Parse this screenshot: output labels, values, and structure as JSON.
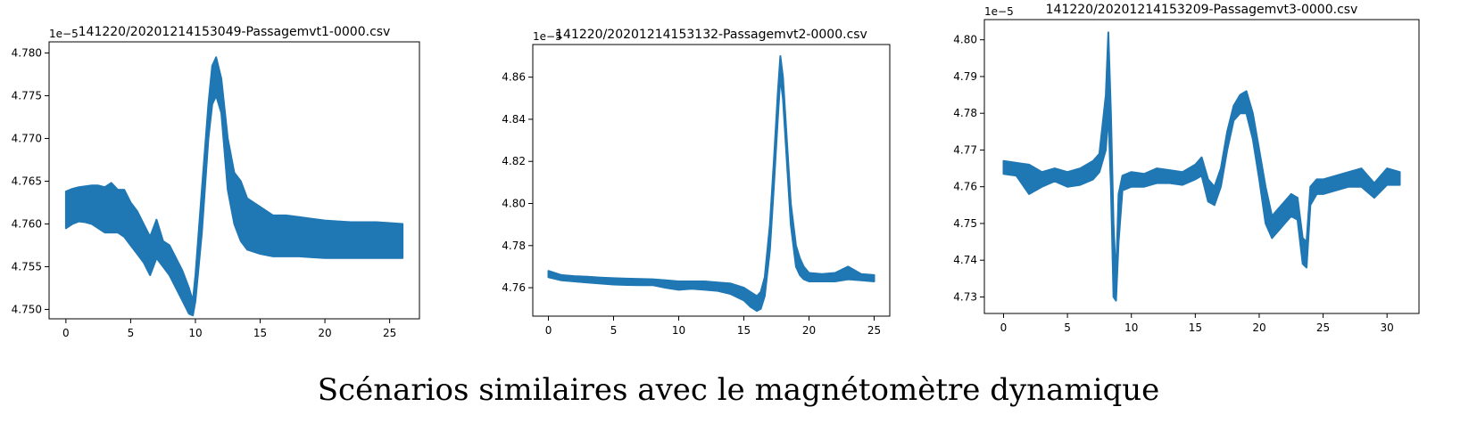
{
  "caption": "Scénarios similaires avec le magnétomètre dynamique",
  "chart_data": [
    {
      "type": "line",
      "title": "141220/20201214153049-Passagemvt1-0000.csv",
      "offset_text": "1e−5",
      "xlabel": "",
      "ylabel": "",
      "xlim": [
        -1.3,
        27.3
      ],
      "ylim": [
        4.7489,
        4.7813
      ],
      "xticks": [
        0,
        5,
        10,
        15,
        20,
        25
      ],
      "yticks": [
        4.75,
        4.755,
        4.76,
        4.765,
        4.77,
        4.775,
        4.78
      ],
      "ytick_decimals": 3,
      "grid": false,
      "color": "#1f77b4",
      "series": [
        {
          "x": [
            0,
            0.5,
            1,
            1.5,
            2,
            2.5,
            3,
            3.5,
            4,
            4.5,
            5,
            5.5,
            6,
            6.5,
            7,
            7.5,
            8,
            8.5,
            9,
            9.5,
            9.8,
            10,
            10.5,
            11,
            11.3,
            11.6,
            12,
            12.5,
            13,
            13.5,
            14,
            15,
            16,
            17,
            18,
            19,
            20,
            21,
            22,
            23,
            24,
            25,
            26
          ],
          "upper": [
            4.7638,
            4.7641,
            4.7643,
            4.7644,
            4.7645,
            4.7645,
            4.7643,
            4.7648,
            4.764,
            4.764,
            4.7625,
            4.7615,
            4.76,
            4.7585,
            4.7605,
            4.758,
            4.7575,
            4.756,
            4.7545,
            4.7525,
            4.751,
            4.754,
            4.764,
            4.774,
            4.7785,
            4.7795,
            4.777,
            4.77,
            4.766,
            4.765,
            4.763,
            4.762,
            4.761,
            4.761,
            4.7608,
            4.7606,
            4.7604,
            4.7603,
            4.7602,
            4.7602,
            4.7602,
            4.7601,
            4.76
          ],
          "lower": [
            4.7595,
            4.76,
            4.7603,
            4.7602,
            4.76,
            4.7595,
            4.759,
            4.759,
            4.759,
            4.7585,
            4.7575,
            4.7565,
            4.7555,
            4.754,
            4.756,
            4.755,
            4.754,
            4.7525,
            4.751,
            4.7495,
            4.7493,
            4.751,
            4.759,
            4.77,
            4.774,
            4.775,
            4.773,
            4.764,
            4.76,
            4.758,
            4.757,
            4.7565,
            4.7562,
            4.7562,
            4.7562,
            4.7561,
            4.756,
            4.756,
            4.756,
            4.756,
            4.756,
            4.756,
            4.756
          ]
        }
      ]
    },
    {
      "type": "line",
      "title": "141220/20201214153132-Passagemvt2-0000.csv",
      "offset_text": "1e−5",
      "xlabel": "",
      "ylabel": "",
      "xlim": [
        -1.2,
        26.2
      ],
      "ylim": [
        4.7465,
        4.8755
      ],
      "xticks": [
        0,
        5,
        10,
        15,
        20,
        25
      ],
      "yticks": [
        4.76,
        4.78,
        4.8,
        4.82,
        4.84,
        4.86
      ],
      "ytick_decimals": 2,
      "grid": false,
      "color": "#1f77b4",
      "series": [
        {
          "x": [
            0,
            1,
            2,
            3,
            4,
            5,
            6,
            7,
            8,
            9,
            10,
            11,
            12,
            13,
            14,
            15,
            15.5,
            16,
            16.3,
            16.6,
            17,
            17.3,
            17.6,
            17.8,
            18,
            18.3,
            18.6,
            19,
            19.3,
            19.6,
            20,
            21,
            22,
            23,
            24,
            25
          ],
          "upper": [
            4.768,
            4.766,
            4.7655,
            4.7652,
            4.7648,
            4.7645,
            4.7643,
            4.7642,
            4.764,
            4.7635,
            4.763,
            4.763,
            4.763,
            4.7625,
            4.762,
            4.76,
            4.758,
            4.756,
            4.758,
            4.765,
            4.79,
            4.82,
            4.852,
            4.87,
            4.86,
            4.83,
            4.8,
            4.78,
            4.774,
            4.77,
            4.767,
            4.7665,
            4.767,
            4.77,
            4.7665,
            4.766
          ],
          "lower": [
            4.765,
            4.7635,
            4.763,
            4.7625,
            4.762,
            4.7615,
            4.7613,
            4.7612,
            4.7612,
            4.76,
            4.759,
            4.7595,
            4.759,
            4.7585,
            4.757,
            4.754,
            4.751,
            4.749,
            4.75,
            4.756,
            4.778,
            4.808,
            4.84,
            4.86,
            4.85,
            4.82,
            4.79,
            4.77,
            4.766,
            4.764,
            4.763,
            4.763,
            4.763,
            4.764,
            4.7635,
            4.763
          ]
        }
      ]
    },
    {
      "type": "line",
      "title": "141220/20201214153209-Passagemvt3-0000.csv",
      "offset_text": "1e−5",
      "xlabel": "",
      "ylabel": "",
      "xlim": [
        -1.5,
        32.5
      ],
      "ylim": [
        4.7255,
        4.8055
      ],
      "xticks": [
        0,
        5,
        10,
        15,
        20,
        25,
        30
      ],
      "yticks": [
        4.73,
        4.74,
        4.75,
        4.76,
        4.77,
        4.78,
        4.79,
        4.8
      ],
      "ytick_decimals": 2,
      "grid": false,
      "color": "#1f77b4",
      "series": [
        {
          "x": [
            0,
            1,
            2,
            3,
            4,
            5,
            6,
            7,
            7.5,
            8,
            8.2,
            8.4,
            8.6,
            8.8,
            9,
            9.3,
            10,
            11,
            12,
            13,
            14,
            15,
            15.5,
            16,
            16.5,
            17,
            17.5,
            18,
            18.5,
            19,
            19.5,
            20,
            20.5,
            21,
            21.5,
            22,
            22.5,
            23,
            23.4,
            23.7,
            24,
            24.5,
            25,
            26,
            27,
            28,
            29,
            30,
            31
          ],
          "upper": [
            4.767,
            4.7665,
            4.766,
            4.764,
            4.765,
            4.764,
            4.765,
            4.767,
            4.769,
            4.785,
            4.802,
            4.78,
            4.75,
            4.735,
            4.758,
            4.763,
            4.764,
            4.7635,
            4.765,
            4.7645,
            4.764,
            4.766,
            4.768,
            4.762,
            4.76,
            4.765,
            4.775,
            4.782,
            4.785,
            4.786,
            4.78,
            4.77,
            4.76,
            4.752,
            4.754,
            4.756,
            4.758,
            4.757,
            4.746,
            4.745,
            4.76,
            4.762,
            4.762,
            4.763,
            4.764,
            4.765,
            4.761,
            4.765,
            4.764
          ],
          "lower": [
            4.7635,
            4.763,
            4.758,
            4.76,
            4.7615,
            4.76,
            4.7605,
            4.762,
            4.764,
            4.77,
            4.78,
            4.76,
            4.73,
            4.729,
            4.745,
            4.759,
            4.76,
            4.76,
            4.761,
            4.761,
            4.7605,
            4.762,
            4.763,
            4.756,
            4.755,
            4.76,
            4.77,
            4.778,
            4.78,
            4.78,
            4.773,
            4.762,
            4.75,
            4.746,
            4.748,
            4.75,
            4.752,
            4.751,
            4.739,
            4.738,
            4.755,
            4.758,
            4.758,
            4.759,
            4.76,
            4.76,
            4.757,
            4.7605,
            4.7605
          ]
        }
      ]
    }
  ]
}
